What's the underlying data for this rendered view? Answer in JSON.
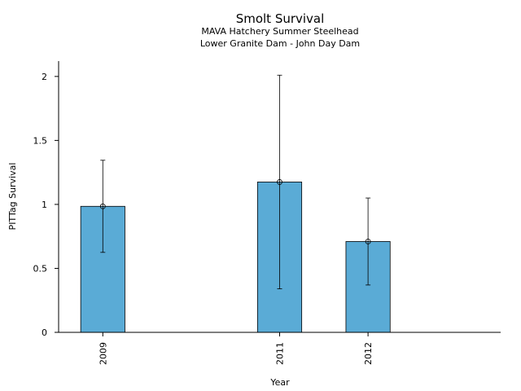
{
  "chart_data": {
    "type": "bar",
    "title": "Smolt Survival",
    "subtitle": [
      "MAVA Hatchery Summer Steelhead",
      "Lower Granite Dam - John Day Dam"
    ],
    "xlabel": "Year",
    "ylabel": "PITTag Survival",
    "x_ticks": [
      2009,
      2011,
      2012
    ],
    "ylim": [
      0,
      2.12
    ],
    "xlim": [
      2008.5,
      2013.5
    ],
    "yticks": [
      0,
      0.5,
      1,
      1.5,
      2
    ],
    "ytick_labels": [
      "0",
      "0.5",
      "1",
      "1.5",
      "2"
    ],
    "grid": false,
    "bar_width": 0.5,
    "bars": [
      {
        "x": 2009,
        "label": "2009",
        "value": 0.985,
        "err_low": 0.625,
        "err_high": 1.345
      },
      {
        "x": 2011,
        "label": "2011",
        "value": 1.175,
        "err_low": 0.34,
        "err_high": 2.01
      },
      {
        "x": 2012,
        "label": "2012",
        "value": 0.71,
        "err_low": 0.37,
        "err_high": 1.05
      }
    ],
    "colors": {
      "bar_fill": "#5aabd6",
      "bar_edge": "#000000",
      "error_bar": "#000000"
    }
  }
}
